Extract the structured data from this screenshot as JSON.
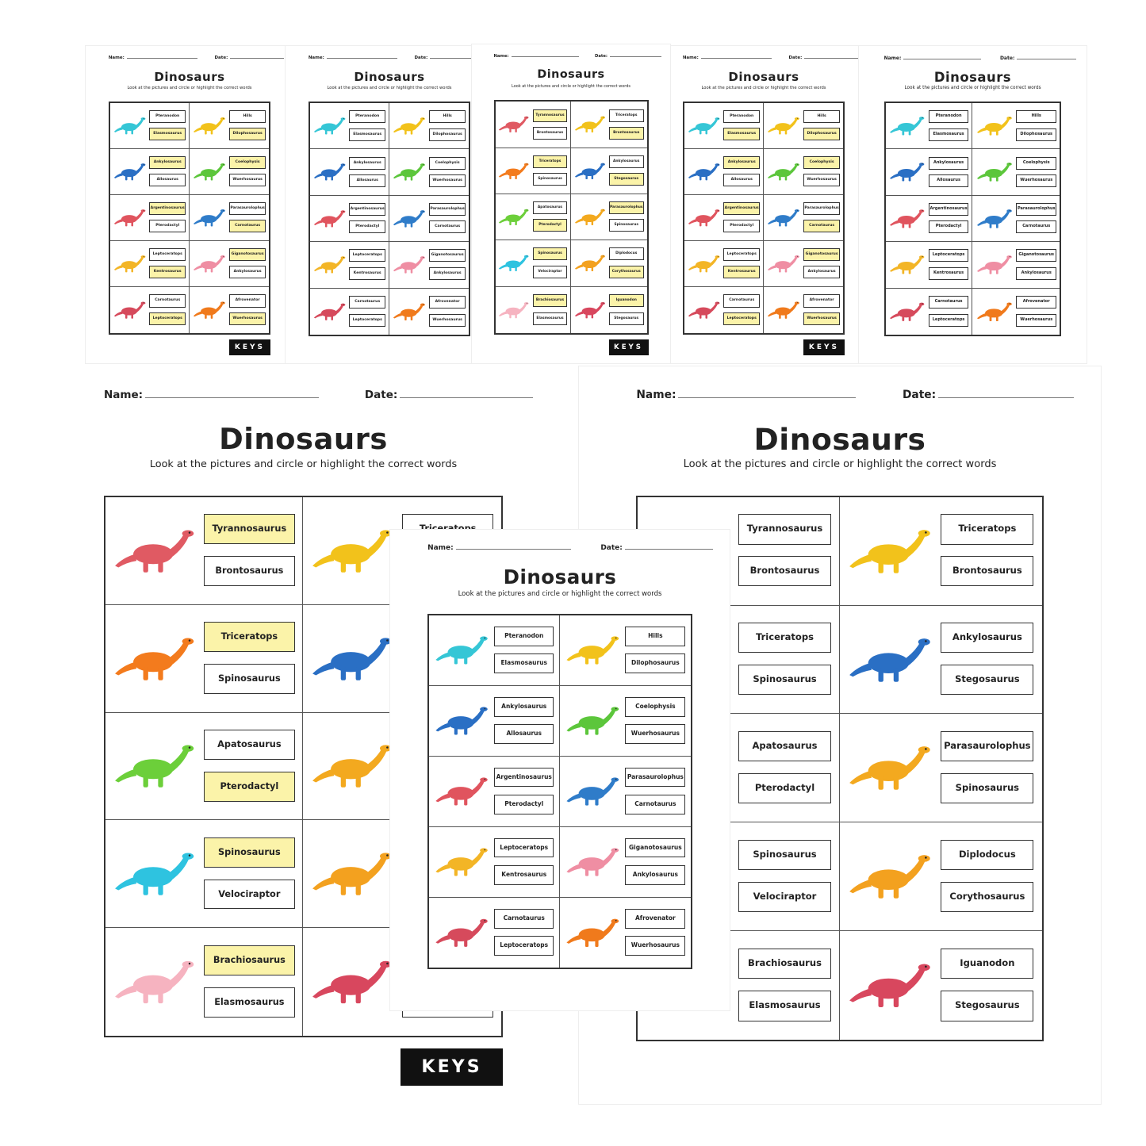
{
  "worksheet": {
    "name_label": "Name:",
    "date_label": "Date:",
    "title": "Dinosaurs",
    "instruction": "Look at the pictures and circle or highlight the correct words",
    "keys_label": "KEYS"
  },
  "set_a": [
    {
      "color": "#35c6d6",
      "words": [
        "Pteranodon",
        "Elasmosaurus"
      ],
      "answer": 1
    },
    {
      "color": "#f2c21b",
      "words": [
        "Hills",
        "Dilophosaurus"
      ],
      "answer": 1
    },
    {
      "color": "#2a6fc4",
      "words": [
        "Ankylosaurus",
        "Allosaurus"
      ],
      "answer": 0
    },
    {
      "color": "#5cc63b",
      "words": [
        "Coelophysis",
        "Wuerhosaurus"
      ],
      "answer": 0
    },
    {
      "color": "#e0545e",
      "words": [
        "Argentinosaurus",
        "Pterodactyl"
      ],
      "answer": 0
    },
    {
      "color": "#2f7cc9",
      "words": [
        "Parasaurolophus",
        "Carnotaurus"
      ],
      "answer": 1
    },
    {
      "color": "#f3b526",
      "words": [
        "Leptoceratops",
        "Kentrosaurus"
      ],
      "answer": 1
    },
    {
      "color": "#ef8ea3",
      "words": [
        "Giganotosaurus",
        "Ankylosaurus"
      ],
      "answer": 0
    },
    {
      "color": "#d64a5c",
      "words": [
        "Carnotaurus",
        "Leptoceratops"
      ],
      "answer": 1
    },
    {
      "color": "#f07a1c",
      "words": [
        "Afrovenator",
        "Wuerhosaurus"
      ],
      "answer": 1
    }
  ],
  "set_b": [
    {
      "color": "#e05a63",
      "words": [
        "Tyrannosaurus",
        "Brontosaurus"
      ],
      "answer": 0
    },
    {
      "color": "#f2c21b",
      "words": [
        "Triceratops",
        "Brontosaurus"
      ],
      "answer": 1
    },
    {
      "color": "#f37b1d",
      "words": [
        "Triceratops",
        "Spinosaurus"
      ],
      "answer": 0
    },
    {
      "color": "#2a6fc4",
      "words": [
        "Ankylosaurus",
        "Stegosaurus"
      ],
      "answer": 1
    },
    {
      "color": "#6ccf3a",
      "words": [
        "Apatosaurus",
        "Pterodactyl"
      ],
      "answer": 1
    },
    {
      "color": "#f3a91f",
      "words": [
        "Parasaurolophus",
        "Spinosaurus"
      ],
      "answer": 0
    },
    {
      "color": "#2ec3e0",
      "words": [
        "Spinosaurus",
        "Velociraptor"
      ],
      "answer": 0
    },
    {
      "color": "#f3a11f",
      "words": [
        "Diplodocus",
        "Corythosaurus"
      ],
      "answer": 1
    },
    {
      "color": "#f6b3c0",
      "words": [
        "Brachiosaurus",
        "Elasmosaurus"
      ],
      "answer": 0
    },
    {
      "color": "#d8475e",
      "words": [
        "Iguanodon",
        "Stegosaurus"
      ],
      "answer": 0
    }
  ]
}
